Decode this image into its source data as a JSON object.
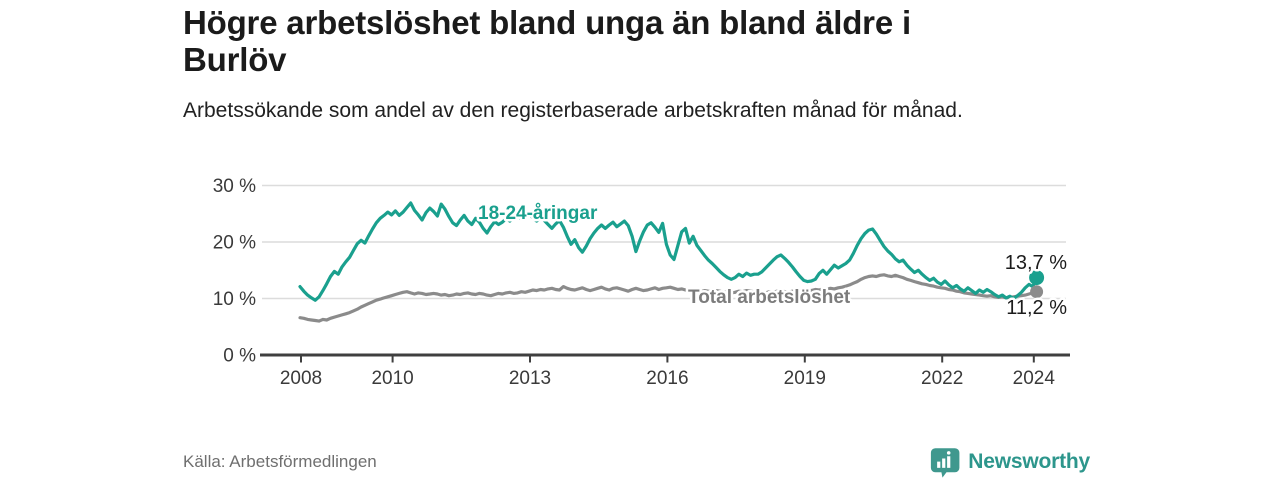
{
  "header": {
    "title": "Högre arbetslöshet bland unga än bland äldre i Burlöv",
    "subtitle": "Arbetssökande som andel av den registerbaserade arbetskraften månad för månad."
  },
  "footer": {
    "source": "Källa: Arbetsförmedlingen",
    "brand": "Newsworthy",
    "brand_icon": "chart-speech-bubble-icon"
  },
  "colors": {
    "young_series": "#1aa08e",
    "total_series": "#8b8b8b",
    "total_label": "#7c7c7c",
    "axis": "#3f3f3f",
    "gridline": "#dcdcdc",
    "logo_teal": "#3f988e"
  },
  "chart_data": {
    "type": "line",
    "title": "Högre arbetslöshet bland unga än bland äldre i Burlöv",
    "subtitle": "Arbetssökande som andel av den registerbaserade arbetskraften månad för månad.",
    "x_start": "2008-01",
    "x_end": "2024-02",
    "frequency": "monthly",
    "ylim": [
      0,
      30
    ],
    "grid": "horizontal",
    "legend_position": "inline-labels",
    "x_tick_labels": [
      "2008",
      "2010",
      "2013",
      "2016",
      "2019",
      "2022",
      "2024"
    ],
    "y_tick_labels": [
      "30 %",
      "20 %",
      "10 %",
      "0 %"
    ],
    "series": [
      {
        "name": "18-24-åringar",
        "color": "#1aa08e",
        "end_label": "13,7 %",
        "last_value": 13.7,
        "values": [
          12.1,
          11.3,
          10.6,
          10.1,
          9.7,
          10.3,
          11.4,
          12.6,
          13.9,
          14.8,
          14.3,
          15.6,
          16.5,
          17.3,
          18.5,
          19.7,
          20.3,
          19.8,
          21.1,
          22.3,
          23.4,
          24.2,
          24.7,
          25.3,
          24.8,
          25.5,
          24.7,
          25.3,
          26.1,
          26.9,
          25.6,
          24.8,
          23.9,
          25.2,
          26.0,
          25.4,
          24.6,
          26.7,
          25.8,
          24.5,
          23.4,
          22.9,
          23.9,
          24.7,
          23.7,
          23.1,
          24.2,
          23.5,
          22.4,
          21.6,
          22.7,
          23.6,
          23.1,
          23.5,
          24.1,
          23.7,
          24.3,
          24.6,
          24.1,
          24.5,
          24.9,
          24.3,
          23.7,
          24.4,
          23.8,
          23.1,
          22.4,
          23.2,
          23.8,
          22.6,
          21.0,
          19.6,
          20.4,
          19.0,
          18.2,
          19.3,
          20.6,
          21.6,
          22.4,
          23.0,
          22.4,
          23.0,
          23.5,
          22.7,
          23.2,
          23.7,
          22.9,
          21.0,
          18.3,
          20.2,
          21.8,
          23.0,
          23.4,
          22.6,
          21.7,
          23.3,
          19.6,
          17.7,
          16.9,
          19.4,
          21.8,
          22.4,
          19.8,
          21.0,
          19.4,
          18.5,
          17.6,
          16.8,
          16.2,
          15.5,
          14.8,
          14.2,
          13.7,
          13.4,
          13.7,
          14.3,
          13.9,
          14.5,
          14.1,
          14.3,
          14.3,
          14.7,
          15.4,
          16.1,
          16.8,
          17.4,
          17.7,
          17.1,
          16.4,
          15.6,
          14.7,
          13.9,
          13.2,
          13.0,
          13.1,
          13.4,
          14.4,
          15.0,
          14.3,
          15.1,
          15.9,
          15.4,
          15.8,
          16.2,
          16.8,
          18.0,
          19.4,
          20.6,
          21.5,
          22.1,
          22.3,
          21.4,
          20.3,
          19.2,
          18.4,
          17.8,
          17.0,
          16.5,
          16.8,
          15.9,
          15.2,
          14.6,
          15.0,
          14.3,
          13.7,
          13.2,
          13.6,
          12.9,
          12.5,
          13.1,
          12.4,
          11.9,
          12.3,
          11.7,
          11.3,
          11.9,
          11.4,
          10.9,
          11.5,
          11.1,
          11.6,
          11.2,
          10.7,
          10.3,
          10.6,
          10.1,
          10.4,
          10.0,
          10.5,
          11.1,
          11.9,
          12.5,
          12.1,
          13.7
        ]
      },
      {
        "name": "Total arbetslöshet",
        "color": "#8b8b8b",
        "end_label": "11,2 %",
        "last_value": 11.2,
        "values": [
          6.6,
          6.5,
          6.3,
          6.2,
          6.1,
          6.0,
          6.3,
          6.2,
          6.5,
          6.7,
          6.9,
          7.1,
          7.3,
          7.5,
          7.8,
          8.1,
          8.5,
          8.8,
          9.1,
          9.4,
          9.7,
          9.9,
          10.1,
          10.3,
          10.5,
          10.7,
          10.9,
          11.1,
          11.2,
          11.0,
          10.8,
          11.0,
          10.9,
          10.7,
          10.8,
          10.9,
          10.8,
          10.6,
          10.7,
          10.5,
          10.6,
          10.8,
          10.7,
          10.9,
          11.0,
          10.8,
          10.7,
          10.9,
          10.8,
          10.6,
          10.5,
          10.7,
          10.9,
          10.8,
          11.0,
          11.1,
          10.9,
          11.0,
          11.2,
          11.1,
          11.3,
          11.5,
          11.4,
          11.6,
          11.5,
          11.7,
          11.8,
          11.6,
          11.5,
          12.1,
          11.8,
          11.6,
          11.5,
          11.7,
          11.9,
          11.6,
          11.4,
          11.6,
          11.8,
          12.0,
          11.7,
          11.5,
          11.8,
          11.9,
          11.7,
          11.5,
          11.3,
          11.6,
          11.8,
          11.6,
          11.4,
          11.5,
          11.7,
          11.9,
          11.6,
          11.8,
          11.9,
          12.0,
          11.8,
          11.6,
          11.7,
          11.5,
          11.4,
          11.6,
          11.3,
          11.2,
          11.4,
          11.3,
          11.2,
          11.4,
          11.3,
          11.1,
          11.2,
          11.0,
          11.1,
          11.3,
          11.2,
          11.4,
          11.3,
          11.2,
          11.3,
          11.1,
          11.0,
          11.2,
          11.1,
          11.3,
          11.4,
          11.2,
          11.1,
          11.3,
          11.2,
          11.4,
          11.3,
          11.5,
          11.4,
          11.6,
          11.5,
          11.7,
          11.6,
          11.8,
          11.7,
          11.9,
          12.0,
          12.2,
          12.4,
          12.7,
          13.0,
          13.4,
          13.7,
          13.9,
          14.0,
          13.9,
          14.1,
          14.2,
          14.0,
          13.9,
          14.1,
          13.9,
          13.7,
          13.4,
          13.2,
          13.0,
          12.8,
          12.6,
          12.5,
          12.3,
          12.2,
          12.0,
          11.9,
          11.8,
          11.6,
          11.5,
          11.3,
          11.2,
          11.0,
          10.9,
          10.8,
          10.7,
          10.6,
          10.5,
          10.4,
          10.5,
          10.3,
          10.2,
          10.3,
          10.1,
          10.2,
          10.3,
          10.4,
          10.5,
          10.6,
          10.8,
          11.0,
          11.2
        ]
      }
    ]
  }
}
